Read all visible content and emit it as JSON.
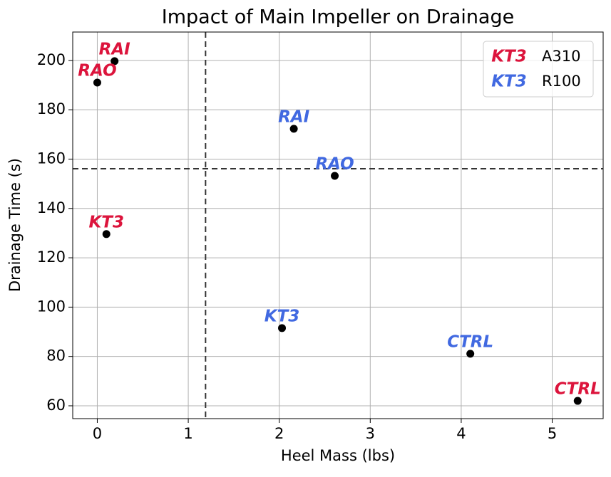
{
  "chart_data": {
    "type": "scatter",
    "title": "Impact of Main Impeller on Drainage",
    "x_label": "Heel Mass (lbs)",
    "y_label": "Drainage Time (s)",
    "marker_color": "#000000",
    "legend_symbol": "KT3",
    "legend_position": "upper right",
    "series": [
      {
        "name": "A310",
        "color": "#dc143c",
        "labels": [
          "RAI",
          "RAO",
          "KT3",
          "CTRL"
        ],
        "x": [
          0.19,
          0,
          0.1,
          5.28
        ],
        "values": [
          199.7,
          191.0,
          129.6,
          62.0
        ]
      },
      {
        "name": "R100",
        "color": "#4169e1",
        "labels": [
          "RAI",
          "RAO",
          "KT3",
          "CTRL"
        ],
        "x": [
          2.16,
          2.61,
          2.03,
          4.1
        ],
        "values": [
          172.3,
          153.2,
          91.5,
          81.1
        ]
      }
    ],
    "vlines": [
      1.19
    ],
    "hlines": [
      156.1
    ],
    "xlim": [
      -0.27,
      5.56
    ],
    "ylim": [
      54.8,
      211.5
    ],
    "xticks": [
      0,
      1,
      2,
      3,
      4,
      5
    ],
    "yticks": [
      60,
      80,
      100,
      120,
      140,
      160,
      180,
      200
    ],
    "grid": true
  }
}
